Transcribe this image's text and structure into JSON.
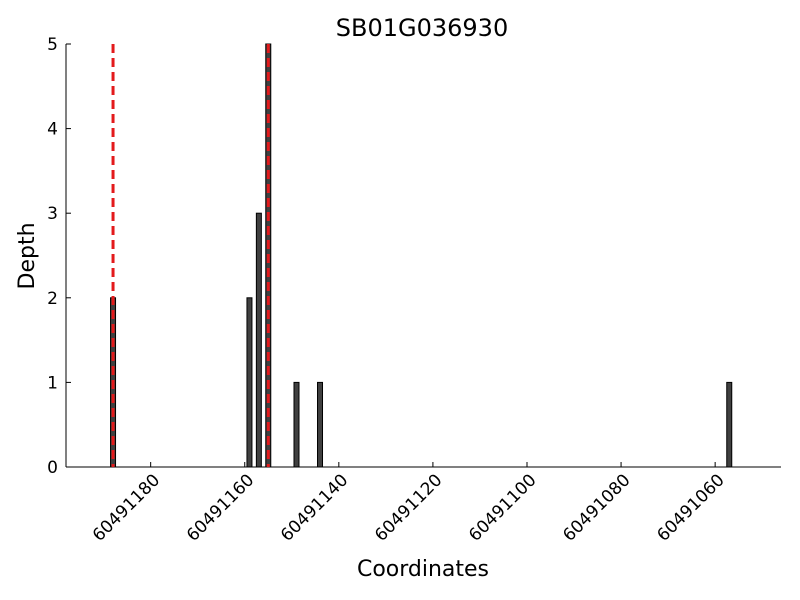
{
  "chart_data": {
    "type": "bar",
    "title": "SB01G036930",
    "xlabel": "Coordinates",
    "ylabel": "Depth",
    "x": [
      60491188,
      60491159,
      60491157,
      60491155,
      60491149,
      60491144,
      60491057
    ],
    "values": [
      2,
      2,
      3,
      5,
      1,
      1,
      1
    ],
    "color": "#404040",
    "reference_lines": [
      60491188,
      60491155
    ],
    "reference_color": "#e31a1c",
    "xlim": [
      60491198,
      60491046
    ],
    "ylim": [
      0,
      5
    ],
    "xticks": [
      60491180,
      60491160,
      60491140,
      60491120,
      60491100,
      60491080,
      60491060
    ],
    "yticks": [
      0,
      1,
      2,
      3,
      4,
      5
    ]
  }
}
